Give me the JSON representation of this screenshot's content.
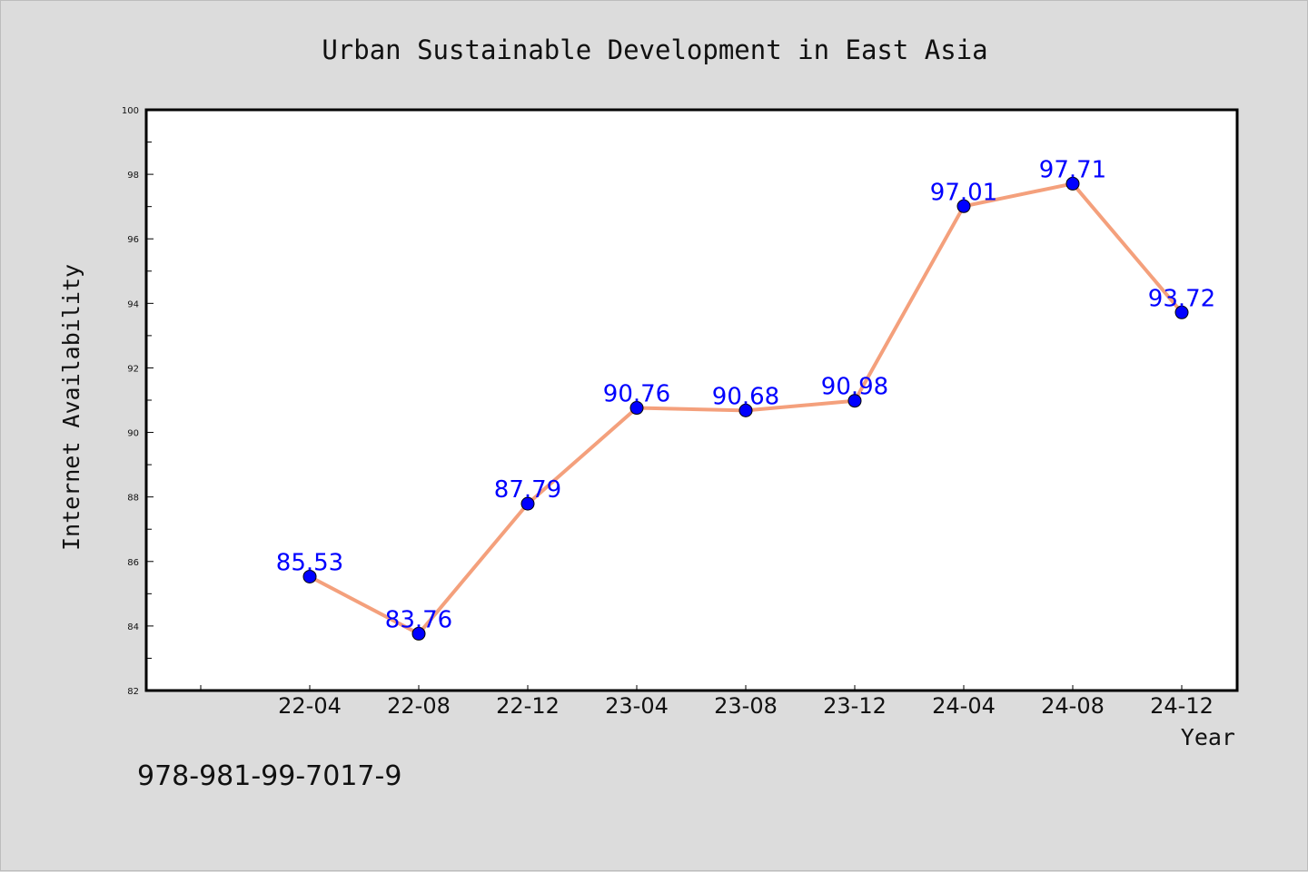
{
  "chart_data": {
    "type": "line",
    "title": "Urban Sustainable Development in East Asia",
    "xlabel": "Year",
    "ylabel": "Internet Availability",
    "categories": [
      "22-04",
      "22-08",
      "22-12",
      "23-04",
      "23-08",
      "23-12",
      "24-04",
      "24-08",
      "24-12"
    ],
    "series": [
      {
        "values": [
          85.53,
          83.76,
          87.79,
          90.76,
          90.68,
          90.98,
          97.01,
          97.71,
          93.72
        ],
        "color": "#f4a07c",
        "marker_color": "#0000ff"
      }
    ],
    "data_labels": [
      "85.53",
      "83.76",
      "87.79",
      "90.76",
      "90.68",
      "90.98",
      "97.01",
      "97.71",
      "93.72"
    ],
    "ylim": [
      82,
      100
    ],
    "yticks": [
      "82",
      "84",
      "86",
      "88",
      "90",
      "92",
      "94",
      "96",
      "98",
      "100"
    ],
    "grid": false,
    "legend": "none",
    "plot_background": "#ffffff",
    "page_background": "#dcdcdc",
    "label_color": "#0000ff"
  },
  "footer": {
    "isbn": "978-981-99-7017-9"
  }
}
